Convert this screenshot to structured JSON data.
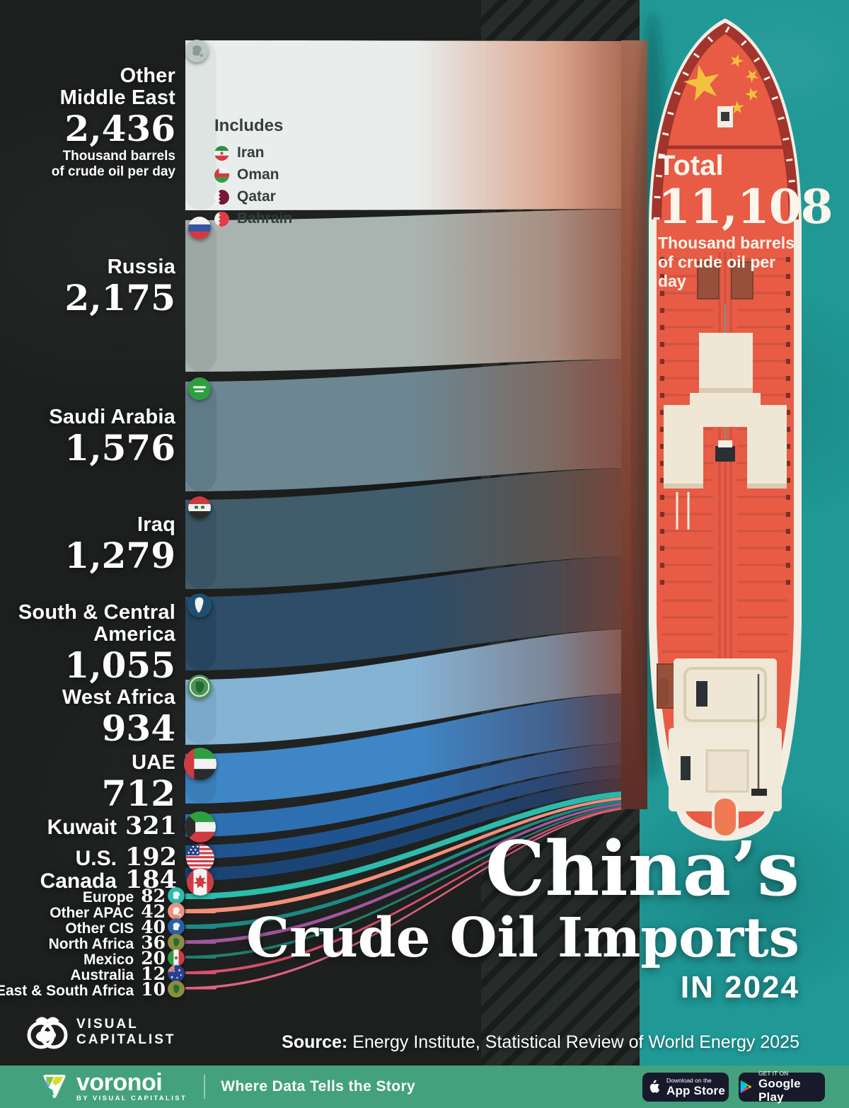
{
  "chart_data": {
    "type": "area",
    "variant": "alluvial flow ribbons converging into tanker-ship illustration",
    "title": "China’s Crude Oil Imports",
    "subtitle": "IN 2024",
    "unit": "Thousand barrels of crude oil per day",
    "unit_lines": [
      "Thousand barrels",
      "of crude oil per day"
    ],
    "legend_position": "left labels on each ribbon",
    "grid": false,
    "categories": [
      "Other Middle East",
      "Russia",
      "Saudi Arabia",
      "Iraq",
      "South & Central America",
      "West Africa",
      "UAE",
      "Kuwait",
      "U.S.",
      "Canada",
      "Europe",
      "Other APAC",
      "Other CIS",
      "North Africa",
      "Mexico",
      "Australia",
      "East & South Africa"
    ],
    "values": [
      2436,
      2175,
      1576,
      1279,
      1055,
      934,
      712,
      321,
      192,
      184,
      82,
      42,
      40,
      36,
      20,
      12,
      10
    ],
    "series": [
      {
        "name": "Other\nMiddle East",
        "name_line1": "Other",
        "name_line2": "Middle East",
        "value": 2436,
        "value_text": "2,436",
        "color": "#e9eeec",
        "mid": "#dba68f",
        "end": "#a05a44",
        "cap": "#dde4e1",
        "flag": "mideast"
      },
      {
        "name": "Russia",
        "value": 2175,
        "value_text": "2,175",
        "color": "#a9b4b0",
        "mid": "#a98e81",
        "end": "#92503c",
        "cap": "#9ba8a4",
        "flag": "russia"
      },
      {
        "name": "Saudi Arabia",
        "value": 1576,
        "value_text": "1,576",
        "color": "#6c8692",
        "mid": "#7e6a63",
        "end": "#88463a",
        "cap": "#607b88",
        "flag": "saudi"
      },
      {
        "name": "Iraq",
        "value": 1279,
        "value_text": "1,279",
        "color": "#415c6b",
        "mid": "#5a524e",
        "end": "#7e4134",
        "cap": "#3a5463",
        "flag": "iraq"
      },
      {
        "name": "South & Central America",
        "name_line1": "South & Central",
        "name_line2": "America",
        "value": 1055,
        "value_text": "1,055",
        "color": "#2d4d68",
        "mid": "#4a4950",
        "end": "#773d31",
        "cap": "#27455e",
        "flag": "samerica"
      },
      {
        "name": "West Africa",
        "value": 934,
        "value_text": "934",
        "color": "#85b3d4",
        "mid": "#7c8596",
        "end": "#8a4a3c",
        "cap": "#7aa9c9",
        "flag": "wafrica"
      },
      {
        "name": "UAE",
        "value": 712,
        "value_text": "712",
        "color": "#3f86c6",
        "mid": "#44618c",
        "end": "#6e3a30",
        "cap": "#3a7db9",
        "flag": "uae"
      },
      {
        "name": "Kuwait",
        "value": 321,
        "value_text": "321",
        "color": "#2e6fb2",
        "mid": "#3a5684",
        "end": "#6a3830",
        "cap": "#2a67a6",
        "flag": "kuwait"
      },
      {
        "name": "U.S.",
        "value": 192,
        "value_text": "192",
        "color": "#1f5490",
        "mid": "#2e4672",
        "end": "#65362e",
        "cap": "#1c4d84",
        "flag": "us"
      },
      {
        "name": "Canada",
        "value": 184,
        "value_text": "184",
        "color": "#1a4473",
        "mid": "#263c60",
        "end": "#60342c",
        "cap": "#183e69",
        "flag": "canada"
      },
      {
        "name": "Europe",
        "value": 82,
        "value_text": "82",
        "color": "#2cbcae",
        "mid": "#2cbcae",
        "end": "#28b2a4",
        "cap": "#2cbcae",
        "flag": "europe"
      },
      {
        "name": "Other APAC",
        "value": 42,
        "value_text": "42",
        "color": "#f4907a",
        "mid": "#f4907a",
        "end": "#ef8872",
        "cap": "#f4907a",
        "flag": "apac"
      },
      {
        "name": "Other CIS",
        "value": 40,
        "value_text": "40",
        "color": "#1b8a84",
        "mid": "#1b8a84",
        "end": "#178079",
        "cap": "#1b8a84",
        "flag": "cis"
      },
      {
        "name": "North Africa",
        "value": 36,
        "value_text": "36",
        "color": "#a2569e",
        "mid": "#a2569e",
        "end": "#9a4f96",
        "cap": "#a2569e",
        "flag": "nafrica"
      },
      {
        "name": "Mexico",
        "value": 20,
        "value_text": "20",
        "color": "#20806d",
        "mid": "#20806d",
        "end": "#1d7866",
        "cap": "#20806d",
        "flag": "mexico"
      },
      {
        "name": "Australia",
        "value": 12,
        "value_text": "12",
        "color": "#d94f6e",
        "mid": "#d94f6e",
        "end": "#d04866",
        "cap": "#d94f6e",
        "flag": "australia"
      },
      {
        "name": "East & South Africa",
        "value": 10,
        "value_text": "10",
        "color": "#df6483",
        "mid": "#df6483",
        "end": "#d65c7b",
        "cap": "#df6483",
        "flag": "esafrica"
      }
    ],
    "total": {
      "label": "Total",
      "value": 11108,
      "value_text": "11,108",
      "unit_line1": "Thousand barrels",
      "unit_line2": "of crude oil per day"
    },
    "note": {
      "heading": "Includes",
      "items": [
        {
          "name": "Iran",
          "flag": "iran"
        },
        {
          "name": "Oman",
          "flag": "oman"
        },
        {
          "name": "Qatar",
          "flag": "qatar"
        },
        {
          "name": "Bahrain",
          "flag": "bahrain"
        }
      ]
    }
  },
  "title": {
    "line1": "China’s",
    "line2": "Crude Oil Imports",
    "line3": "IN 2024"
  },
  "source": {
    "label": "Source:",
    "text": "Energy Institute, Statistical Review of World Energy 2025"
  },
  "vc_logo": {
    "line1": "VISUAL",
    "line2": "CAPITALIST"
  },
  "footer": {
    "brand": "voronoi",
    "brand_sub": "BY VISUAL CAPITALIST",
    "tagline": "Where Data Tells the Story",
    "appstore": {
      "line1": "Download on the",
      "line2": "App Store"
    },
    "googleplay": {
      "line1": "GET IT ON",
      "line2": "Google Play"
    }
  },
  "colors": {
    "background": "#1d1f1e",
    "water": "#1f9896",
    "ship_deck": "#e85b45",
    "ship_trim": "#a2342e",
    "hull": "#f3eee3",
    "footer_bar": "#43a17d",
    "flow_merge": "#8a4a3c",
    "star_yellow": "#f2c13d"
  }
}
